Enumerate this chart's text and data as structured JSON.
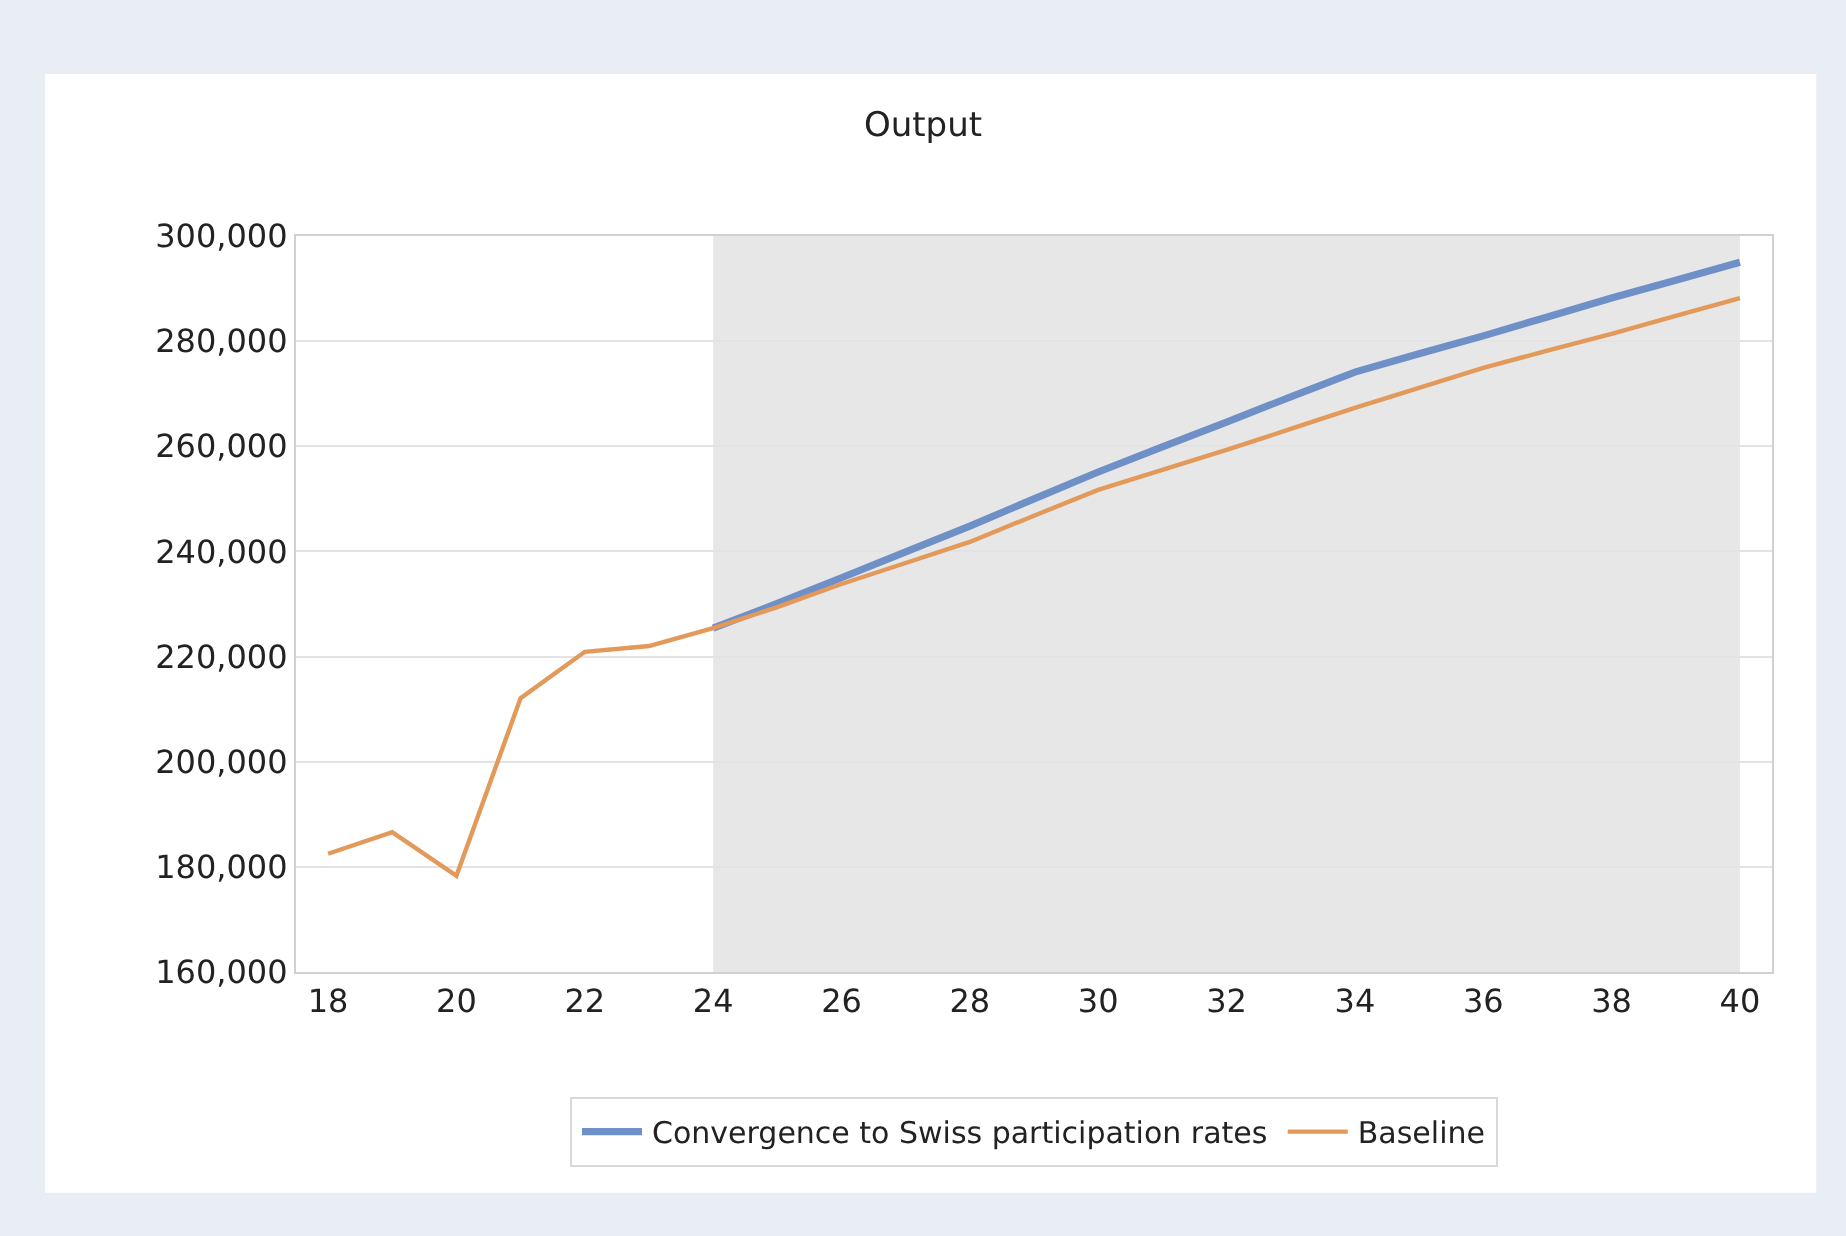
{
  "chart_data": {
    "type": "line",
    "title": "Output",
    "xlim": [
      17.5,
      40.5
    ],
    "xticks": [
      18,
      20,
      22,
      24,
      26,
      28,
      30,
      32,
      34,
      36,
      38,
      40
    ],
    "ylim": [
      160000,
      300000
    ],
    "yticks": [
      {
        "value": 160000,
        "label": "160,000"
      },
      {
        "value": 180000,
        "label": "180,000"
      },
      {
        "value": 200000,
        "label": "200,000"
      },
      {
        "value": 220000,
        "label": "220,000"
      },
      {
        "value": 240000,
        "label": "240,000"
      },
      {
        "value": 260000,
        "label": "260,000"
      },
      {
        "value": 280000,
        "label": "280,000"
      },
      {
        "value": 300000,
        "label": "300,000"
      }
    ],
    "grid": "y",
    "legend": "bottom",
    "marker": "none",
    "line_style": "solid",
    "bands": [
      {
        "axis": "x",
        "from": 24,
        "to": 40,
        "color": "#e7e7e7"
      }
    ],
    "series": [
      {
        "name": "Convergence to Swiss participation rates",
        "color": "#6f8fc7",
        "x": [
          24,
          25,
          26,
          27,
          28,
          29,
          30,
          31,
          32,
          33,
          34,
          35,
          36,
          37,
          38,
          39,
          40
        ],
        "values": [
          225400,
          230100,
          235000,
          239900,
          244800,
          250000,
          255100,
          259900,
          264600,
          269400,
          274100,
          277600,
          281000,
          284600,
          288200,
          291600,
          295000
        ]
      },
      {
        "name": "Baseline",
        "color": "#e2995a",
        "x": [
          18,
          19,
          20,
          21,
          22,
          23,
          24,
          25,
          26,
          27,
          28,
          29,
          30,
          31,
          32,
          33,
          34,
          35,
          36,
          37,
          38,
          39,
          40
        ],
        "values": [
          182500,
          186600,
          178300,
          212100,
          220900,
          222000,
          225400,
          229400,
          233800,
          237800,
          241800,
          246800,
          251700,
          255500,
          259300,
          263300,
          267300,
          271100,
          274900,
          278200,
          281400,
          284800,
          288200
        ]
      }
    ]
  }
}
